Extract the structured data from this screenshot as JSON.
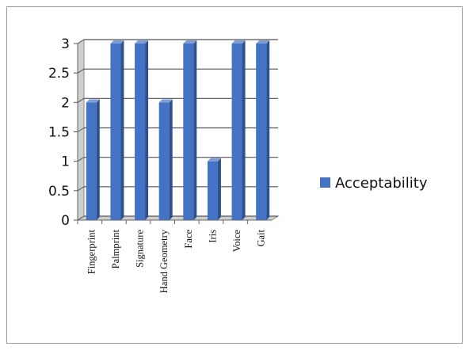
{
  "chart_data": {
    "type": "bar",
    "style": "3d-column",
    "categories": [
      "Fingerprint",
      "Palmprint",
      "Signature",
      "Hand Geometry",
      "Face",
      "Iris",
      "Voice",
      "Gait"
    ],
    "series": [
      {
        "name": "Acceptability",
        "values": [
          2,
          3,
          3,
          2,
          3,
          1,
          3,
          3
        ]
      }
    ],
    "title": "",
    "xlabel": "",
    "ylabel": "",
    "ylim": [
      0,
      3
    ],
    "yticks": [
      "0",
      "0.5",
      "1",
      "1.5",
      "2",
      "2.5",
      "3"
    ],
    "grid": true,
    "legend": "right",
    "colors": {
      "bar_front": "#4472c4",
      "bar_side": "#2f528f",
      "bar_top": "#7f9fd6",
      "gridline": "#555555",
      "wall": "#cfcfcf"
    }
  }
}
